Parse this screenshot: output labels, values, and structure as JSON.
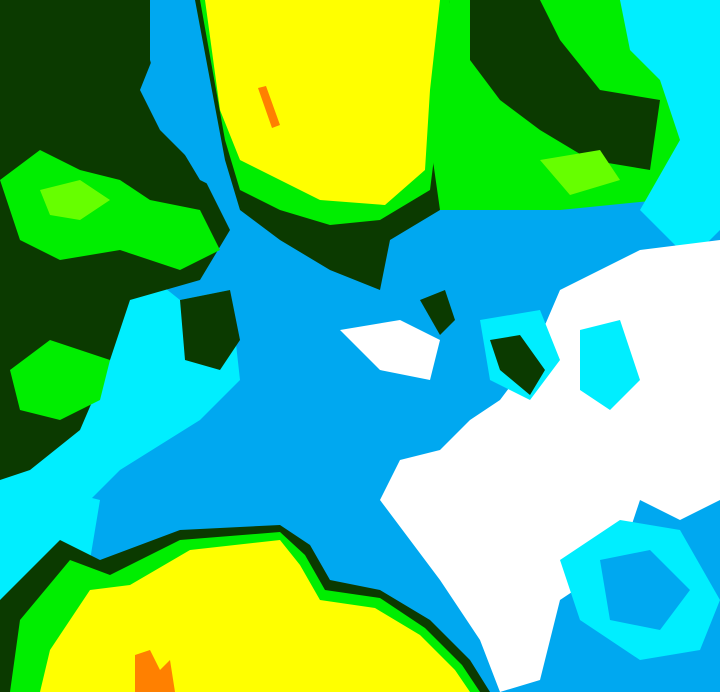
{
  "map": {
    "type": "classified raster",
    "palette": {
      "dark_green": "#0b3a00",
      "green": "#00ee00",
      "lime": "#66ff00",
      "yellow": "#ffff00",
      "orange": "#ff8000",
      "cyan": "#00eeff",
      "light_blue": "#00a8f0",
      "white": "#ffffff"
    }
  }
}
